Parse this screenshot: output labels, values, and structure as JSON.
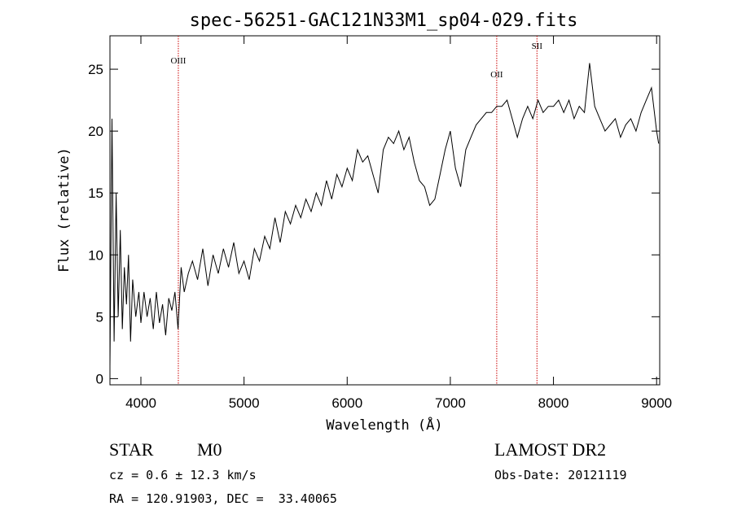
{
  "chart_data": {
    "type": "line",
    "title": "spec-56251-GAC121N33M1_sp04-029.fits",
    "xlabel": "Wavelength (Å)",
    "ylabel": "Flux (relative)",
    "xlim": [
      3700,
      9030
    ],
    "ylim": [
      -0.5,
      27.7
    ],
    "x_ticks": [
      4000,
      5000,
      6000,
      7000,
      8000,
      9000
    ],
    "y_ticks": [
      0,
      5,
      10,
      15,
      20,
      25
    ],
    "grid": false,
    "line_color": "#000000",
    "marker_color": "#cc0000",
    "series": [
      {
        "x": [
          3700,
          3720,
          3740,
          3760,
          3780,
          3800,
          3820,
          3840,
          3860,
          3880,
          3900,
          3920,
          3950,
          3980,
          4000,
          4030,
          4060,
          4090,
          4120,
          4150,
          4180,
          4210,
          4240,
          4270,
          4300,
          4330,
          4360,
          4390,
          4420,
          4460,
          4500,
          4550,
          4600,
          4650,
          4700,
          4750,
          4800,
          4850,
          4900,
          4950,
          5000,
          5050,
          5100,
          5150,
          5200,
          5250,
          5300,
          5350,
          5400,
          5450,
          5500,
          5550,
          5600,
          5650,
          5700,
          5750,
          5800,
          5850,
          5900,
          5950,
          6000,
          6050,
          6100,
          6150,
          6200,
          6250,
          6300,
          6350,
          6400,
          6450,
          6500,
          6550,
          6600,
          6650,
          6700,
          6750,
          6800,
          6850,
          6900,
          6950,
          7000,
          7050,
          7100,
          7150,
          7200,
          7250,
          7300,
          7350,
          7400,
          7450,
          7500,
          7550,
          7600,
          7650,
          7700,
          7750,
          7800,
          7850,
          7900,
          7950,
          8000,
          8050,
          8100,
          8150,
          8200,
          8250,
          8300,
          8350,
          8400,
          8450,
          8500,
          8550,
          8600,
          8650,
          8700,
          8750,
          8800,
          8850,
          8900,
          8950,
          9000,
          9020
        ],
        "y": [
          1.0,
          21.0,
          3.0,
          15.0,
          5.0,
          12.0,
          4.0,
          9.0,
          6.0,
          10.0,
          3.0,
          8.0,
          5.0,
          7.0,
          4.5,
          7.0,
          5.0,
          6.5,
          4.0,
          7.0,
          4.5,
          6.0,
          3.5,
          6.5,
          5.5,
          7.0,
          4.0,
          9.0,
          7.0,
          8.5,
          9.5,
          8.0,
          10.5,
          7.5,
          10.0,
          8.5,
          10.5,
          9.0,
          11.0,
          8.5,
          9.5,
          8.0,
          10.5,
          9.5,
          11.5,
          10.5,
          13.0,
          11.0,
          13.5,
          12.5,
          14.0,
          13.0,
          14.5,
          13.5,
          15.0,
          14.0,
          16.0,
          14.5,
          16.5,
          15.5,
          17.0,
          16.0,
          18.5,
          17.5,
          18.0,
          16.5,
          15.0,
          18.5,
          19.5,
          19.0,
          20.0,
          18.5,
          19.5,
          17.5,
          16.0,
          15.5,
          14.0,
          14.5,
          16.5,
          18.5,
          20.0,
          17.0,
          15.5,
          18.5,
          19.5,
          20.5,
          21.0,
          21.5,
          21.5,
          22.0,
          22.0,
          22.5,
          21.0,
          19.5,
          21.0,
          22.0,
          21.0,
          22.5,
          21.5,
          22.0,
          22.0,
          22.5,
          21.5,
          22.5,
          21.0,
          22.0,
          21.5,
          25.5,
          22.0,
          21.0,
          20.0,
          20.5,
          21.0,
          19.5,
          20.5,
          21.0,
          20.0,
          21.5,
          22.5,
          23.5,
          20.0,
          19.0
        ]
      }
    ],
    "annotations": [
      {
        "text": "OIII",
        "x": 4363
      },
      {
        "text": "OII",
        "x": 7450
      },
      {
        "text": "SII",
        "x": 7840
      }
    ]
  },
  "info": {
    "object_class": "STAR",
    "subclass": "M0",
    "survey": "LAMOST DR2",
    "cz": "cz = 0.6 ± 12.3 km/s",
    "obs_date": "Obs-Date: 20121119",
    "coords": "RA = 120.91903, DEC =  33.40065"
  }
}
